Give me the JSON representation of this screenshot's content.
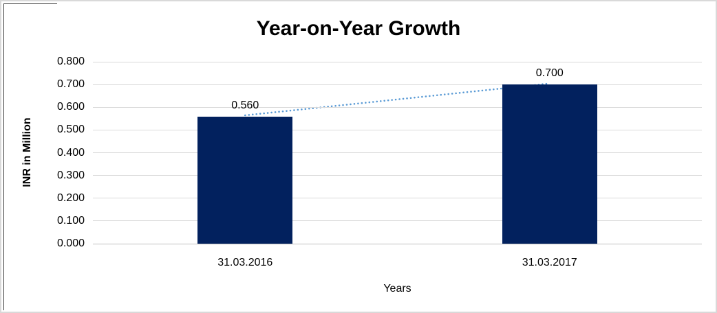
{
  "chart_data": {
    "type": "bar",
    "title": "Year-on-Year Growth",
    "categories": [
      "31.03.2016",
      "31.03.2017"
    ],
    "values": [
      0.56,
      0.7
    ],
    "data_labels": [
      "0.560",
      "0.700"
    ],
    "xlabel": "Years",
    "ylabel": "INR in Million",
    "ylim": [
      0,
      0.8
    ],
    "ytick_step": 0.1,
    "yticks": [
      "0.000",
      "0.100",
      "0.200",
      "0.300",
      "0.400",
      "0.500",
      "0.600",
      "0.700",
      "0.800"
    ],
    "grid": true,
    "legend": false,
    "trendline": {
      "style": "dotted",
      "from_category": "31.03.2016",
      "to_category": "31.03.2017"
    },
    "colors": {
      "bar": "#02215E",
      "trendline": "#5B9BD5",
      "gridline": "#D9D9D9",
      "axis_line": "#BFBFBF",
      "text": "#000000",
      "frame_border": "#D9D9D9",
      "frame_artifact": "#404040"
    }
  }
}
